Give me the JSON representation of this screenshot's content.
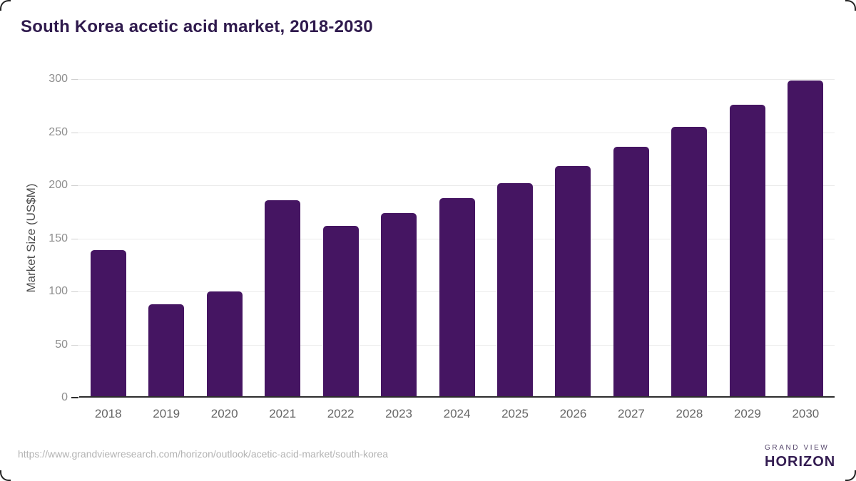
{
  "header": {
    "title": "South Korea acetic acid market, 2018-2030",
    "title_color": "#2f1a4d"
  },
  "chart_data": {
    "type": "bar",
    "title": "South Korea acetic acid market, 2018-2030",
    "categories": [
      "2018",
      "2019",
      "2020",
      "2021",
      "2022",
      "2023",
      "2024",
      "2025",
      "2026",
      "2027",
      "2028",
      "2029",
      "2030"
    ],
    "values": [
      139,
      88,
      100,
      186,
      162,
      174,
      188,
      202,
      218,
      236,
      255,
      276,
      299
    ],
    "xlabel": "",
    "ylabel": "Market Size (US$M)",
    "ylim": [
      0,
      300
    ],
    "yticks": [
      0,
      50,
      100,
      150,
      200,
      250,
      300
    ],
    "grid": true,
    "legend": "none",
    "bar_color": "#451562"
  },
  "footer": {
    "source_url": "https://www.grandviewresearch.com/horizon/outlook/acetic-acid-market/south-korea",
    "logo": {
      "mark_icon": "sunrise-horizon-icon",
      "mark_top_color": "#3e2160",
      "mark_bottom_color": "#5fc1ee",
      "line1": "GRAND VIEW",
      "line2": "HORIZON"
    }
  }
}
